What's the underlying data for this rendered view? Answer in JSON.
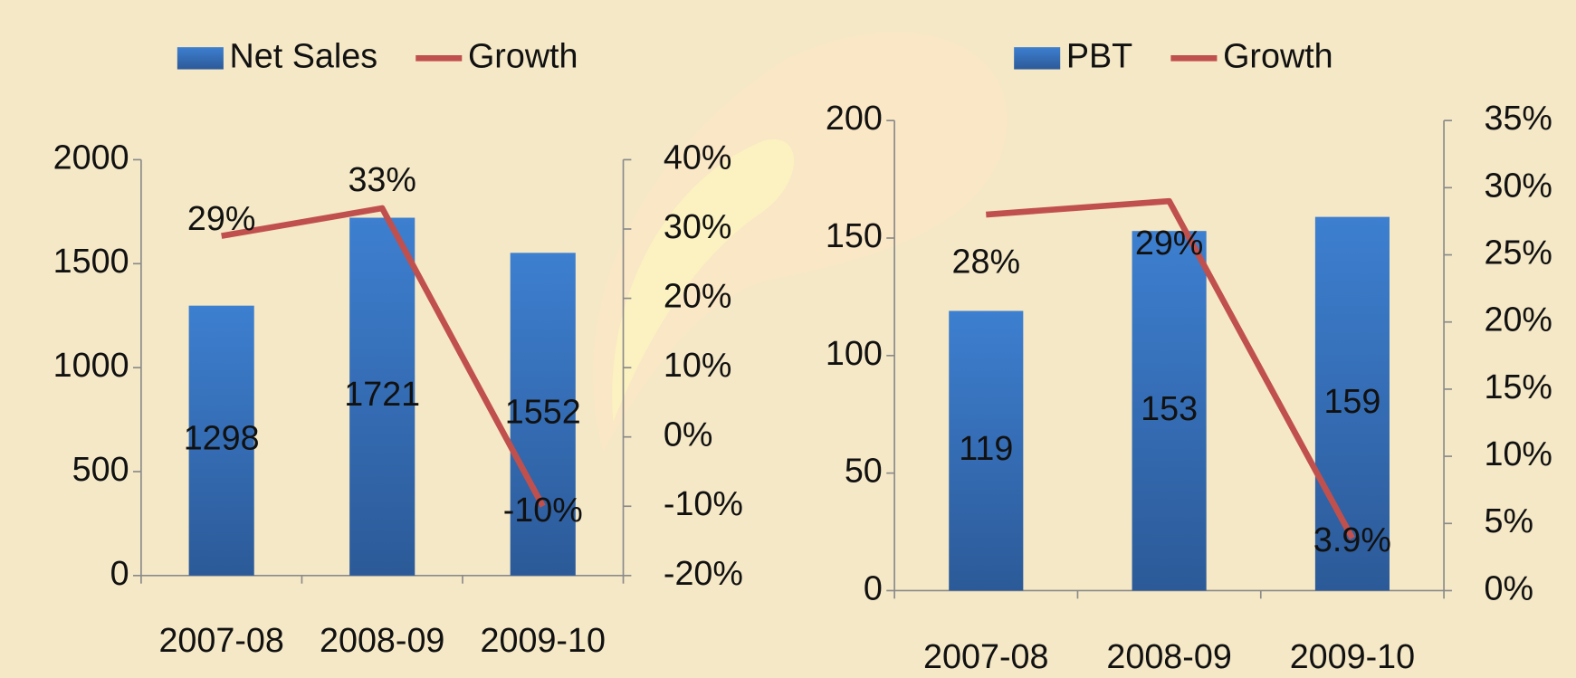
{
  "chart_data": [
    {
      "type": "bar",
      "categories": [
        "2007-08",
        "2008-09",
        "2009-10"
      ],
      "series": [
        {
          "name": "Net Sales",
          "color": "#3a78c8",
          "values": [
            1298,
            1721,
            1552
          ]
        },
        {
          "name": "Growth",
          "type": "line",
          "axis": "y2",
          "color": "#c0504d",
          "values": [
            29,
            33,
            -10
          ],
          "value_labels": [
            "29%",
            "33%",
            "-10%"
          ]
        }
      ],
      "ylim": [
        0,
        2000
      ],
      "yticks": [
        0,
        500,
        1000,
        1500,
        2000
      ],
      "y2lim": [
        -20,
        40
      ],
      "y2ticks": [
        {
          "value": -20,
          "label": "-20%"
        },
        {
          "value": -10,
          "label": "-10%"
        },
        {
          "value": 0,
          "label": "0%"
        },
        {
          "value": 10,
          "label": "10%"
        },
        {
          "value": 20,
          "label": "20%"
        },
        {
          "value": 30,
          "label": "30%"
        },
        {
          "value": 40,
          "label": "40%"
        }
      ]
    },
    {
      "type": "bar",
      "categories": [
        "2007-08",
        "2008-09",
        "2009-10"
      ],
      "series": [
        {
          "name": "PBT",
          "color": "#3a78c8",
          "values": [
            119,
            153,
            159
          ]
        },
        {
          "name": "Growth",
          "type": "line",
          "axis": "y2",
          "color": "#c0504d",
          "values": [
            28,
            29,
            3.9
          ],
          "value_labels": [
            "28%",
            "29%",
            "3.9%"
          ]
        }
      ],
      "ylim": [
        0,
        200
      ],
      "yticks": [
        0,
        50,
        100,
        150,
        200
      ],
      "y2lim": [
        0,
        35
      ],
      "y2ticks": [
        {
          "value": 0,
          "label": "0%"
        },
        {
          "value": 5,
          "label": "5%"
        },
        {
          "value": 10,
          "label": "10%"
        },
        {
          "value": 15,
          "label": "15%"
        },
        {
          "value": 20,
          "label": "20%"
        },
        {
          "value": 25,
          "label": "25%"
        },
        {
          "value": 30,
          "label": "30%"
        },
        {
          "value": 35,
          "label": "35%"
        }
      ]
    }
  ]
}
